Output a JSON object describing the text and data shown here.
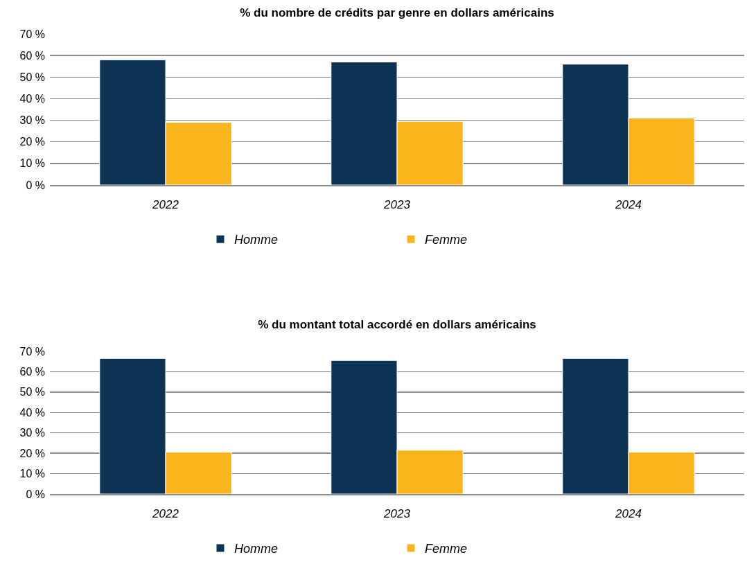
{
  "chart_data": [
    {
      "type": "bar",
      "title": "% du nombre de crédits par genre en dollars américains",
      "categories": [
        "2022",
        "2023",
        "2024"
      ],
      "series": [
        {
          "name": "Homme",
          "color": "#0c3354",
          "values": [
            58,
            57,
            56
          ]
        },
        {
          "name": "Femme",
          "color": "#fbb51c",
          "values": [
            29,
            29.5,
            31
          ]
        }
      ],
      "ylim": [
        0,
        70
      ],
      "yticks": [
        {
          "value": 0,
          "label": "0 %"
        },
        {
          "value": 10,
          "label": "10 %"
        },
        {
          "value": 20,
          "label": "20 %"
        },
        {
          "value": 30,
          "label": "30 %"
        },
        {
          "value": 40,
          "label": "40 %"
        },
        {
          "value": 50,
          "label": "50 %"
        },
        {
          "value": 60,
          "label": "60 %"
        },
        {
          "value": 70,
          "label": "70 %"
        }
      ],
      "grid": "y",
      "legend": "bottom"
    },
    {
      "type": "bar",
      "title": "% du montant total accordé en dollars américains",
      "categories": [
        "2022",
        "2023",
        "2024"
      ],
      "series": [
        {
          "name": "Homme",
          "color": "#0c3354",
          "values": [
            66.5,
            65.5,
            66.5
          ]
        },
        {
          "name": "Femme",
          "color": "#fbb51c",
          "values": [
            20.5,
            21.5,
            20.5
          ]
        }
      ],
      "ylim": [
        0,
        70
      ],
      "yticks": [
        {
          "value": 0,
          "label": "0 %"
        },
        {
          "value": 10,
          "label": "10 %"
        },
        {
          "value": 20,
          "label": "20 %"
        },
        {
          "value": 30,
          "label": "30 %"
        },
        {
          "value": 40,
          "label": "40 %"
        },
        {
          "value": 50,
          "label": "50 %"
        },
        {
          "value": 60,
          "label": "60 %"
        },
        {
          "value": 70,
          "label": "70 %"
        }
      ],
      "grid": "y",
      "legend": "bottom"
    }
  ]
}
